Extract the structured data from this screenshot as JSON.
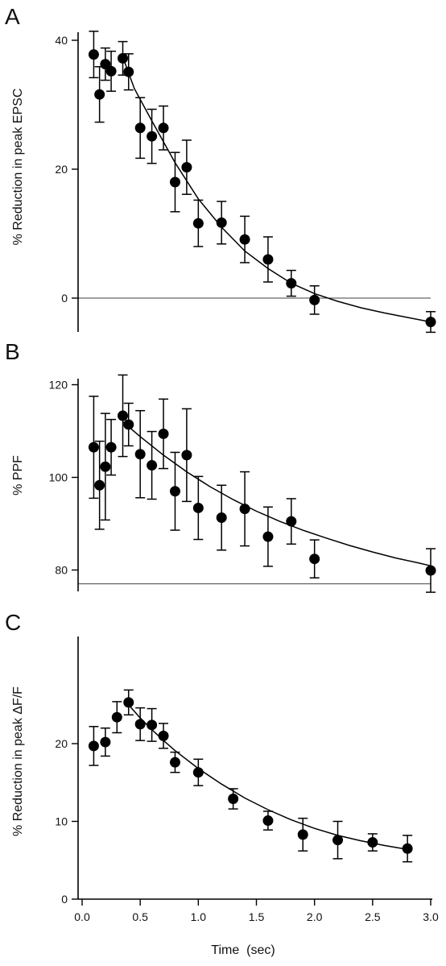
{
  "chart_data": [
    {
      "panel": "A",
      "type": "scatter",
      "ylabel": "% Reduction in peak EPSC",
      "xlim": [
        0,
        3.0
      ],
      "ylim": [
        -5,
        42
      ],
      "yticks": [
        0,
        20,
        40
      ],
      "ytick_labels": [
        "0",
        "20",
        "40"
      ],
      "reference_line": 0,
      "points": [
        {
          "x": 0.1,
          "y": 37.8,
          "err": 3.6
        },
        {
          "x": 0.15,
          "y": 31.6,
          "err": 4.3
        },
        {
          "x": 0.2,
          "y": 36.3,
          "err": 2.5
        },
        {
          "x": 0.25,
          "y": 35.2,
          "err": 3.1
        },
        {
          "x": 0.35,
          "y": 37.2,
          "err": 2.6
        },
        {
          "x": 0.4,
          "y": 35.1,
          "err": 2.8
        },
        {
          "x": 0.5,
          "y": 26.4,
          "err": 4.7
        },
        {
          "x": 0.6,
          "y": 25.1,
          "err": 4.2
        },
        {
          "x": 0.7,
          "y": 26.4,
          "err": 3.4
        },
        {
          "x": 0.8,
          "y": 18.0,
          "err": 4.6
        },
        {
          "x": 0.9,
          "y": 20.3,
          "err": 4.2
        },
        {
          "x": 1.0,
          "y": 11.6,
          "err": 3.6
        },
        {
          "x": 1.2,
          "y": 11.7,
          "err": 3.3
        },
        {
          "x": 1.4,
          "y": 9.1,
          "err": 3.6
        },
        {
          "x": 1.6,
          "y": 6.0,
          "err": 3.5
        },
        {
          "x": 1.8,
          "y": 2.3,
          "err": 2.0
        },
        {
          "x": 2.0,
          "y": -0.3,
          "err": 2.2
        },
        {
          "x": 3.0,
          "y": -3.7,
          "err": 1.6
        }
      ],
      "fit": [
        [
          0.35,
          37.4
        ],
        [
          0.45,
          32.5
        ],
        [
          0.6,
          27.5
        ],
        [
          0.8,
          21.0
        ],
        [
          1.0,
          15.4
        ],
        [
          1.2,
          11.0
        ],
        [
          1.4,
          7.3
        ],
        [
          1.6,
          4.6
        ],
        [
          1.8,
          2.3
        ],
        [
          2.0,
          0.7
        ],
        [
          2.2,
          -0.5
        ],
        [
          2.4,
          -1.5
        ],
        [
          2.6,
          -2.3
        ],
        [
          2.8,
          -3.0
        ],
        [
          3.0,
          -3.7
        ]
      ]
    },
    {
      "panel": "B",
      "type": "scatter",
      "ylabel": "% PPF",
      "xlim": [
        0,
        3.0
      ],
      "ylim": [
        74,
        122
      ],
      "yticks": [
        80,
        100,
        120
      ],
      "ytick_labels": [
        "80",
        "100",
        "120"
      ],
      "reference_line": 77,
      "points": [
        {
          "x": 0.1,
          "y": 106.5,
          "err": 11.0
        },
        {
          "x": 0.15,
          "y": 98.3,
          "err": 9.5
        },
        {
          "x": 0.2,
          "y": 102.3,
          "err": 11.5
        },
        {
          "x": 0.25,
          "y": 106.5,
          "err": 6.0
        },
        {
          "x": 0.35,
          "y": 113.3,
          "err": 8.8
        },
        {
          "x": 0.4,
          "y": 111.4,
          "err": 4.6
        },
        {
          "x": 0.5,
          "y": 105.0,
          "err": 9.4
        },
        {
          "x": 0.6,
          "y": 102.6,
          "err": 7.3
        },
        {
          "x": 0.7,
          "y": 109.4,
          "err": 7.5
        },
        {
          "x": 0.8,
          "y": 97.0,
          "err": 8.4
        },
        {
          "x": 0.9,
          "y": 104.8,
          "err": 10.0
        },
        {
          "x": 1.0,
          "y": 93.4,
          "err": 6.8
        },
        {
          "x": 1.2,
          "y": 91.3,
          "err": 7.0
        },
        {
          "x": 1.4,
          "y": 93.2,
          "err": 8.0
        },
        {
          "x": 1.6,
          "y": 87.2,
          "err": 6.4
        },
        {
          "x": 1.8,
          "y": 90.5,
          "err": 4.9
        },
        {
          "x": 2.0,
          "y": 82.4,
          "err": 4.1
        },
        {
          "x": 3.0,
          "y": 79.9,
          "err": 4.7
        }
      ],
      "fit": [
        [
          0.35,
          112.0
        ],
        [
          0.5,
          108.8
        ],
        [
          0.7,
          104.8
        ],
        [
          0.9,
          101.2
        ],
        [
          1.1,
          98.0
        ],
        [
          1.3,
          95.2
        ],
        [
          1.5,
          92.7
        ],
        [
          1.7,
          90.5
        ],
        [
          1.9,
          88.6
        ],
        [
          2.1,
          86.9
        ],
        [
          2.3,
          85.3
        ],
        [
          2.5,
          83.9
        ],
        [
          2.7,
          82.6
        ],
        [
          2.9,
          81.5
        ],
        [
          3.0,
          80.9
        ]
      ]
    },
    {
      "panel": "C",
      "type": "scatter",
      "ylabel": "% Reduction in peak ΔF/F",
      "xlabel": "Time  (sec)",
      "xlim": [
        0,
        3.0
      ],
      "ylim": [
        0,
        28
      ],
      "xticks": [
        0.0,
        0.5,
        1.0,
        1.5,
        2.0,
        2.5,
        3.0
      ],
      "xtick_labels": [
        "0.0",
        "0.5",
        "1.0",
        "1.5",
        "2.0",
        "2.5",
        "3.0"
      ],
      "yticks": [
        0,
        10,
        20
      ],
      "ytick_labels": [
        "0",
        "10",
        "20"
      ],
      "points": [
        {
          "x": 0.1,
          "y": 19.7,
          "err": 2.5
        },
        {
          "x": 0.2,
          "y": 20.2,
          "err": 1.8
        },
        {
          "x": 0.3,
          "y": 23.4,
          "err": 2.0
        },
        {
          "x": 0.4,
          "y": 25.3,
          "err": 1.6
        },
        {
          "x": 0.5,
          "y": 22.5,
          "err": 2.1
        },
        {
          "x": 0.6,
          "y": 22.4,
          "err": 2.1
        },
        {
          "x": 0.7,
          "y": 21.0,
          "err": 1.6
        },
        {
          "x": 0.8,
          "y": 17.6,
          "err": 1.3
        },
        {
          "x": 1.0,
          "y": 16.3,
          "err": 1.7
        },
        {
          "x": 1.3,
          "y": 12.9,
          "err": 1.3
        },
        {
          "x": 1.6,
          "y": 10.1,
          "err": 1.2
        },
        {
          "x": 1.9,
          "y": 8.3,
          "err": 2.1
        },
        {
          "x": 2.2,
          "y": 7.6,
          "err": 2.4
        },
        {
          "x": 2.5,
          "y": 7.3,
          "err": 1.1
        },
        {
          "x": 2.8,
          "y": 6.5,
          "err": 1.7
        }
      ],
      "fit": [
        [
          0.4,
          25.0
        ],
        [
          0.5,
          23.3
        ],
        [
          0.6,
          21.8
        ],
        [
          0.7,
          20.4
        ],
        [
          0.8,
          19.1
        ],
        [
          1.0,
          16.8
        ],
        [
          1.2,
          14.8
        ],
        [
          1.4,
          13.0
        ],
        [
          1.6,
          11.5
        ],
        [
          1.8,
          10.2
        ],
        [
          2.0,
          9.1
        ],
        [
          2.2,
          8.2
        ],
        [
          2.4,
          7.5
        ],
        [
          2.6,
          6.9
        ],
        [
          2.8,
          6.4
        ]
      ]
    }
  ]
}
